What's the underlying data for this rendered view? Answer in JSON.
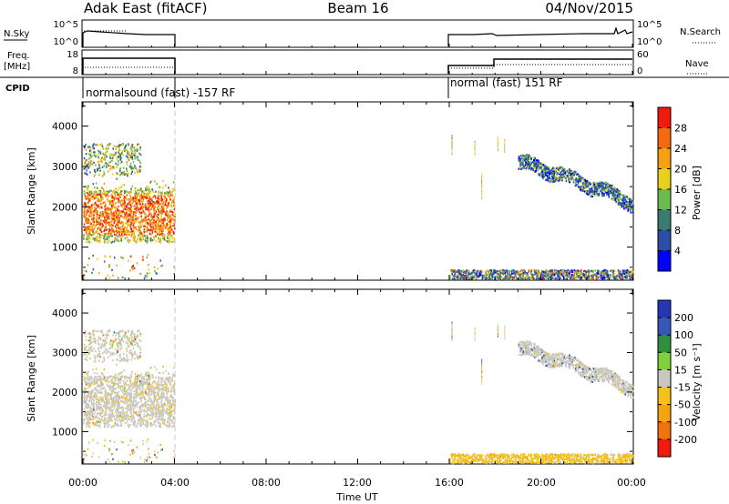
{
  "header": {
    "station": "Adak East (fitACF)",
    "beam": "Beam 16",
    "date": "04/Nov/2015"
  },
  "labels": {
    "nsky": "N.Sky",
    "nsearch": "N.Search",
    "freq_line1": "Freq.",
    "freq_line2": "[MHz]",
    "nave": "Nave",
    "cpid": "CPID",
    "nsky_ticks": [
      "10^5",
      "10^0"
    ],
    "freq_ticks": [
      "18",
      "8"
    ],
    "nave_ticks": [
      "60",
      "0"
    ],
    "cpid_segments": [
      {
        "label": "normalsound (fast) -157 RF",
        "start": "00:00",
        "end": "04:00"
      },
      {
        "label": "normal (fast) 151 RF",
        "start": "16:00",
        "end": "24:00"
      }
    ],
    "x_axis_title": "Time UT",
    "x_ticks": [
      "00:00",
      "04:00",
      "08:00",
      "12:00",
      "16:00",
      "20:00",
      "00:00"
    ],
    "y_axis_title": "Slant Range [km]",
    "y_ticks": [
      "1000",
      "2000",
      "3000",
      "4000"
    ],
    "power_title": "Power [dB]",
    "power_ticks": [
      "4",
      "8",
      "12",
      "16",
      "20",
      "24",
      "28"
    ],
    "velocity_title": "Velocity [m s⁻¹]",
    "velocity_ticks": [
      "200",
      "100",
      "50",
      "15",
      "-15",
      "-50",
      "-100",
      "-200"
    ]
  },
  "chart_data": [
    {
      "type": "heatmap",
      "title": "Power [dB]",
      "xlabel": "Time UT",
      "ylabel": "Slant Range [km]",
      "xlim": [
        0,
        24
      ],
      "ylim": [
        180,
        4600
      ],
      "colorbar": {
        "label": "Power [dB]",
        "range": [
          0,
          32
        ],
        "colors": [
          "#0000ff",
          "#2d4ea6",
          "#3b7c6e",
          "#6cbb4e",
          "#e7d11c",
          "#f7a011",
          "#f56a0e",
          "#ee1c0c"
        ]
      },
      "echo_regions": [
        {
          "start_hour": 0.0,
          "end_hour": 4.0,
          "min_km": 1000,
          "max_km": 3500,
          "typical_db": 24
        },
        {
          "start_hour": 16.0,
          "end_hour": 24.0,
          "min_km": 180,
          "max_km": 400,
          "typical_db": 8
        },
        {
          "start_hour": 19.0,
          "end_hour": 24.0,
          "min_km": 2000,
          "max_km": 3300,
          "typical_db": 8
        }
      ]
    },
    {
      "type": "heatmap",
      "title": "Velocity [m s-1]",
      "xlabel": "Time UT",
      "ylabel": "Slant Range [km]",
      "xlim": [
        0,
        24
      ],
      "ylim": [
        180,
        4600
      ],
      "colorbar": {
        "label": "Velocity [m s-1]",
        "range": [
          -250,
          250
        ],
        "colors": [
          "#2438b3",
          "#3857b7",
          "#308f3e",
          "#7fcf3e",
          "#c8c8c0",
          "#f5c21a",
          "#f5a40f",
          "#f2720b",
          "#ee1c0c"
        ]
      },
      "echo_regions": [
        {
          "start_hour": 0.0,
          "end_hour": 4.0,
          "min_km": 1000,
          "max_km": 3500,
          "typical_ms": -10
        },
        {
          "start_hour": 16.0,
          "end_hour": 24.0,
          "min_km": 180,
          "max_km": 400,
          "typical_ms": -30
        },
        {
          "start_hour": 19.0,
          "end_hour": 24.0,
          "min_km": 2000,
          "max_km": 3300,
          "typical_ms": 0
        }
      ]
    }
  ]
}
